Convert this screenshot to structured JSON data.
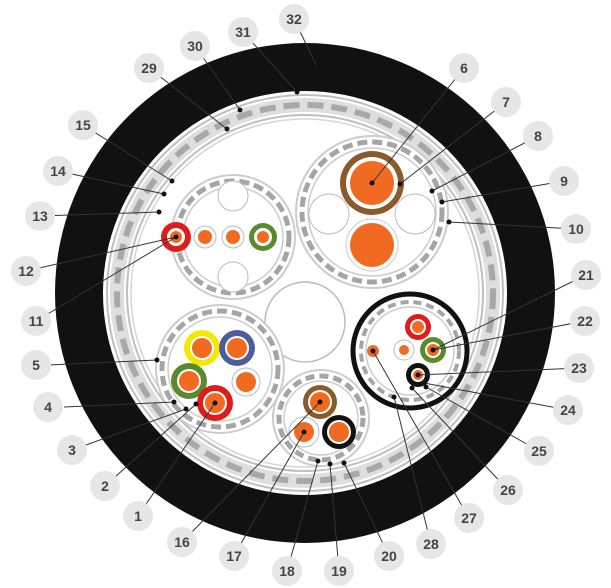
{
  "callout_labels": [
    "1",
    "2",
    "3",
    "4",
    "5",
    "6",
    "7",
    "8",
    "9",
    "10",
    "11",
    "12",
    "13",
    "14",
    "15",
    "16",
    "17",
    "18",
    "19",
    "20",
    "21",
    "22",
    "23",
    "24",
    "25",
    "26",
    "27",
    "28",
    "29",
    "30",
    "31",
    "32"
  ],
  "colors": {
    "outer_jacket": "#111111",
    "armor_fill": "#d9d9d9",
    "armor_segment": "#aaaaaa",
    "core_orange": "#f06a22",
    "brown_insulation": "#8a5a2b",
    "red_insulation": "#e01b1b",
    "green_insulation": "#5b8a2e",
    "yellow_insulation": "#f5e800",
    "blue_insulation": "#4d5d9a",
    "black_insulation": "#111111",
    "filler_white": "#ffffff",
    "bubble_grey": "#e6e6e6",
    "label_text": "#444444"
  }
}
